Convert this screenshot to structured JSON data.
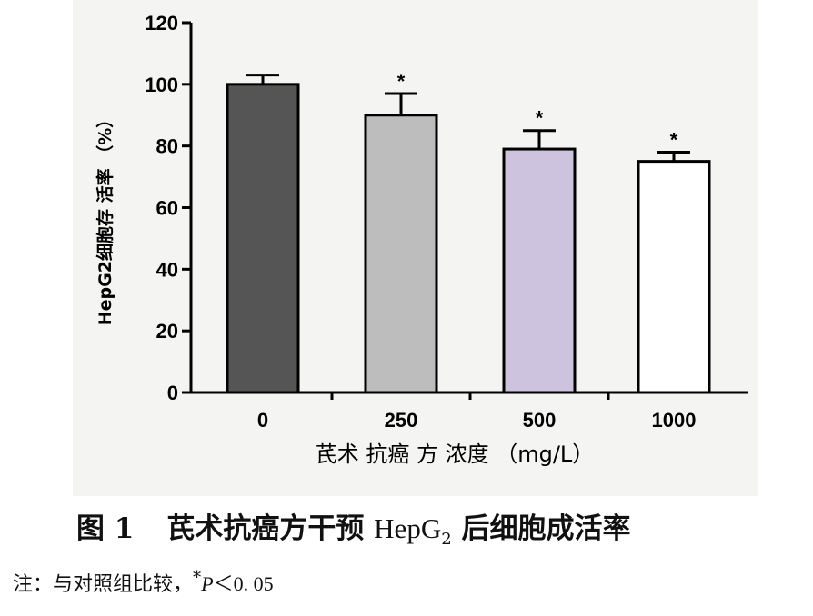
{
  "chart_data": {
    "type": "bar",
    "categories": [
      "0",
      "250",
      "500",
      "1000"
    ],
    "values": [
      100,
      90,
      79,
      75
    ],
    "errors": [
      3,
      7,
      6,
      3
    ],
    "significance": [
      "",
      "*",
      "*",
      "*"
    ],
    "bar_colors": [
      "#555555",
      "#bdbdbd",
      "#cdc3de",
      "#ffffff"
    ],
    "xlabel": "芪术 抗癌 方 浓度 （mg/L）",
    "ylabel": "HepG2细胞存 活率 （%）",
    "ylim": [
      0,
      120
    ],
    "yticks": [
      0,
      20,
      40,
      60,
      80,
      100,
      120
    ],
    "grid": false,
    "legend": "none"
  },
  "caption": {
    "figure_no": "图 1",
    "text_a": "芪术抗癌方干预 ",
    "text_b": "HepG",
    "text_sub": "2",
    "text_c": " 后细胞成活率"
  },
  "note": {
    "prefix": "注：与对照组比较，",
    "star": "*",
    "symbol": "P",
    "rest": "＜0. 05"
  }
}
